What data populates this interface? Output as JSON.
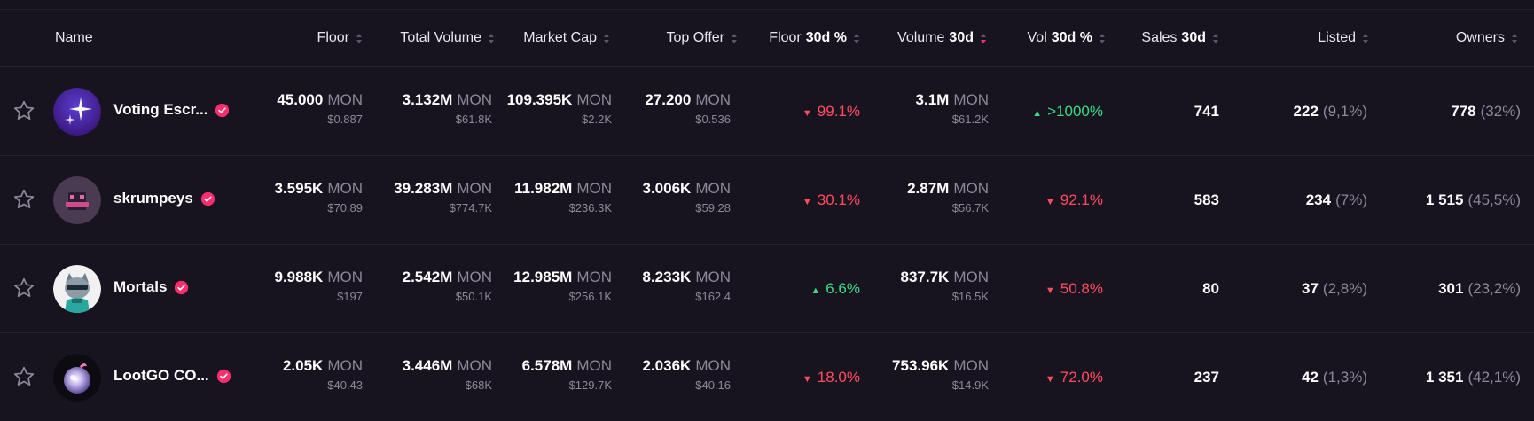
{
  "colors": {
    "background": "#17141f",
    "accent": "#ff2d6e",
    "down": "#ff4d5e",
    "up": "#3ddc84",
    "muted": "#8c8a97"
  },
  "header": {
    "name": "Name",
    "floor": "Floor",
    "total_volume": "Total Volume",
    "market_cap": "Market Cap",
    "top_offer": "Top Offer",
    "floor_30d_a": "Floor",
    "floor_30d_b": "30d %",
    "volume_30d_a": "Volume",
    "volume_30d_b": "30d",
    "vol_30d_a": "Vol",
    "vol_30d_b": "30d %",
    "sales_30d_a": "Sales",
    "sales_30d_b": "30d",
    "listed": "Listed",
    "owners": "Owners",
    "active_sort": "volume_30d",
    "sort_icon": "sort-icon"
  },
  "unit": "MON",
  "rows": [
    {
      "name": "Voting Escr...",
      "avatar_icon": "sparkle-avatar",
      "verified_icon": "verified-check-icon",
      "floor": "45.000",
      "floor_usd": "$0.887",
      "total_volume": "3.132M",
      "total_volume_usd": "$61.8K",
      "market_cap": "109.395K",
      "market_cap_usd": "$2.2K",
      "top_offer": "27.200",
      "top_offer_usd": "$0.536",
      "floor_30d": "99.1%",
      "floor_30d_dir": "down",
      "volume_30d": "3.1M",
      "volume_30d_usd": "$61.2K",
      "vol_30d": ">1000%",
      "vol_30d_dir": "up",
      "sales_30d": "741",
      "listed": "222",
      "listed_pct": "(9,1%)",
      "owners": "778",
      "owners_pct": "(32%)"
    },
    {
      "name": "skrumpeys",
      "avatar_icon": "hat-avatar",
      "verified_icon": "verified-check-icon",
      "floor": "3.595K",
      "floor_usd": "$70.89",
      "total_volume": "39.283M",
      "total_volume_usd": "$774.7K",
      "market_cap": "11.982M",
      "market_cap_usd": "$236.3K",
      "top_offer": "3.006K",
      "top_offer_usd": "$59.28",
      "floor_30d": "30.1%",
      "floor_30d_dir": "down",
      "volume_30d": "2.87M",
      "volume_30d_usd": "$56.7K",
      "vol_30d": "92.1%",
      "vol_30d_dir": "down",
      "sales_30d": "583",
      "listed": "234",
      "listed_pct": "(7%)",
      "owners": "1 515",
      "owners_pct": "(45,5%)"
    },
    {
      "name": "Mortals",
      "avatar_icon": "cat-avatar",
      "verified_icon": "verified-check-icon",
      "floor": "9.988K",
      "floor_usd": "$197",
      "total_volume": "2.542M",
      "total_volume_usd": "$50.1K",
      "market_cap": "12.985M",
      "market_cap_usd": "$256.1K",
      "top_offer": "8.233K",
      "top_offer_usd": "$162.4",
      "floor_30d": "6.6%",
      "floor_30d_dir": "up",
      "volume_30d": "837.7K",
      "volume_30d_usd": "$16.5K",
      "vol_30d": "50.8%",
      "vol_30d_dir": "down",
      "sales_30d": "80",
      "listed": "37",
      "listed_pct": "(2,8%)",
      "owners": "301",
      "owners_pct": "(23,2%)"
    },
    {
      "name": "LootGO CO...",
      "avatar_icon": "orb-avatar",
      "verified_icon": "verified-check-icon",
      "floor": "2.05K",
      "floor_usd": "$40.43",
      "total_volume": "3.446M",
      "total_volume_usd": "$68K",
      "market_cap": "6.578M",
      "market_cap_usd": "$129.7K",
      "top_offer": "2.036K",
      "top_offer_usd": "$40.16",
      "floor_30d": "18.0%",
      "floor_30d_dir": "down",
      "volume_30d": "753.96K",
      "volume_30d_usd": "$14.9K",
      "vol_30d": "72.0%",
      "vol_30d_dir": "down",
      "sales_30d": "237",
      "listed": "42",
      "listed_pct": "(1,3%)",
      "owners": "1 351",
      "owners_pct": "(42,1%)"
    }
  ]
}
